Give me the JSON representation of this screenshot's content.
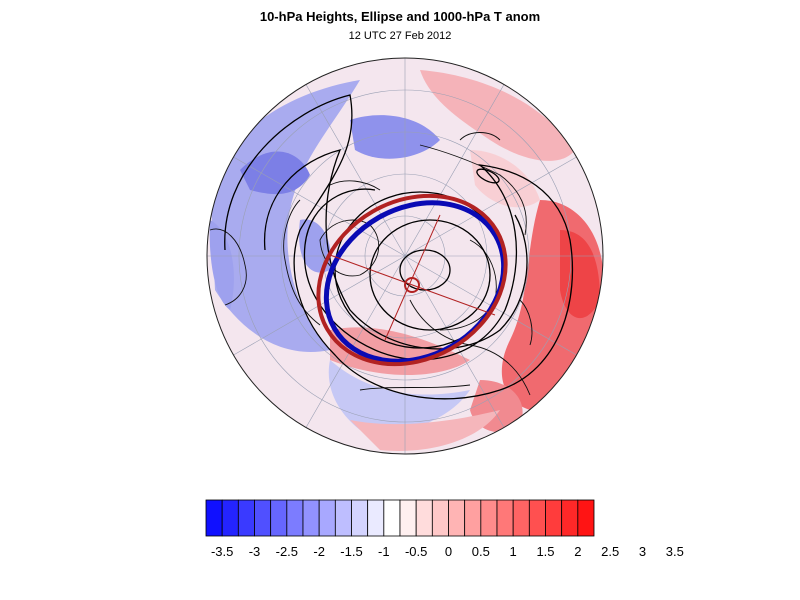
{
  "figure": {
    "title": "10-hPa Heights, Ellipse and 1000-hPa T anom",
    "subtitle": "12 UTC 27 Feb 2012"
  },
  "map": {
    "projection": "north polar stereographic",
    "ellipse_outer_color": "#b22222",
    "ellipse_inner_color": "#0a0ab4",
    "contour_color": "#000000",
    "coastline_color": "#000000"
  },
  "colorbar": {
    "colors": [
      "#1010ff",
      "#2424ff",
      "#3a3aff",
      "#5050ff",
      "#6666ff",
      "#7c7cff",
      "#9292ff",
      "#a8a8ff",
      "#bebeff",
      "#d4d4ff",
      "#eaeaff",
      "#ffffff",
      "#fff0f0",
      "#ffdcdc",
      "#ffc8c8",
      "#ffb4b4",
      "#ffa0a0",
      "#ff8c8c",
      "#ff7878",
      "#ff6464",
      "#ff5050",
      "#ff3c3c",
      "#ff2828",
      "#ff1414"
    ],
    "tick_labels": [
      "-3.5",
      "-3",
      "-2.5",
      "-2",
      "-1.5",
      "-1",
      "-0.5",
      "0",
      "0.5",
      "1",
      "1.5",
      "2",
      "2.5",
      "3",
      "3.5"
    ]
  }
}
